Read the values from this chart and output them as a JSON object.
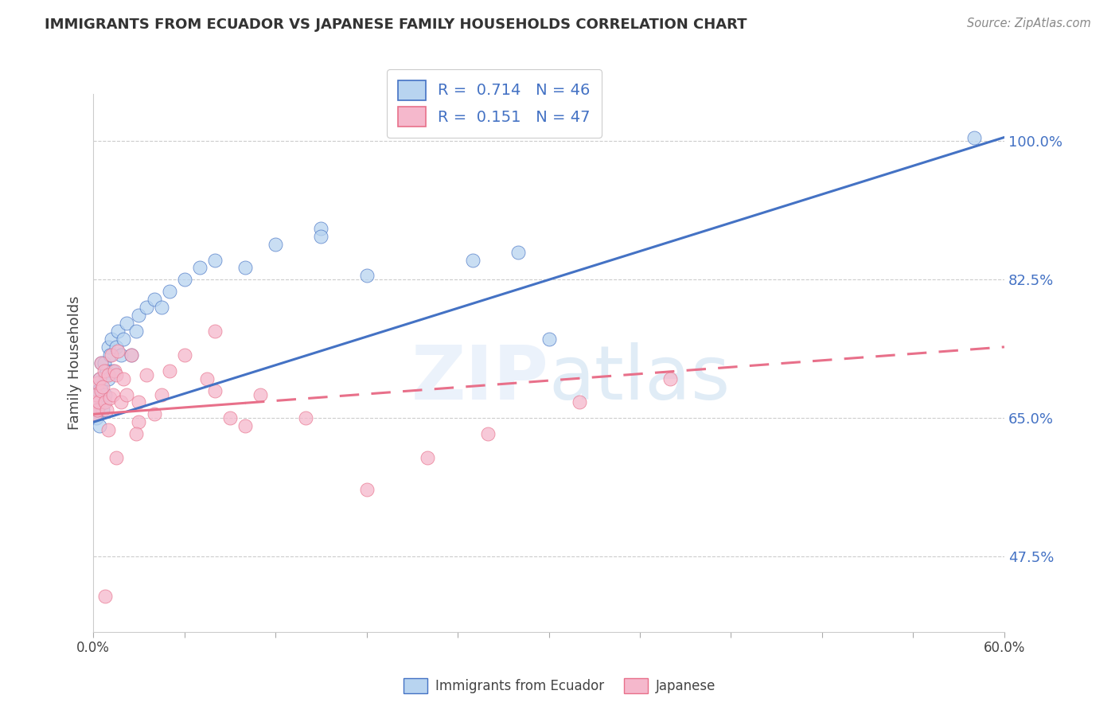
{
  "title": "IMMIGRANTS FROM ECUADOR VS JAPANESE FAMILY HOUSEHOLDS CORRELATION CHART",
  "source": "Source: ZipAtlas.com",
  "ylabel": "Family Households",
  "r_ecuador": 0.714,
  "n_ecuador": 46,
  "r_japanese": 0.151,
  "n_japanese": 47,
  "ecuador_color": "#b8d4f0",
  "japanese_color": "#f5b8cc",
  "ecuador_line_color": "#4472c4",
  "japanese_line_color": "#e8708a",
  "y_ticks": [
    47.5,
    65.0,
    82.5,
    100.0
  ],
  "x_range": [
    0.0,
    60.0
  ],
  "y_range": [
    38.0,
    106.0
  ],
  "eq_trend_x0": 0.0,
  "eq_trend_y0": 64.5,
  "eq_trend_x1": 60.0,
  "eq_trend_y1": 100.5,
  "jp_trend_x0": 0.0,
  "jp_trend_y0": 65.5,
  "jp_trend_x1": 60.0,
  "jp_trend_y1": 74.0,
  "jp_solid_end_x": 10.0,
  "ecuador_points_x": [
    0.1,
    0.15,
    0.2,
    0.2,
    0.3,
    0.3,
    0.4,
    0.4,
    0.5,
    0.5,
    0.6,
    0.6,
    0.7,
    0.7,
    0.8,
    0.8,
    0.9,
    1.0,
    1.0,
    1.1,
    1.2,
    1.3,
    1.5,
    1.6,
    1.8,
    2.0,
    2.2,
    2.5,
    2.8,
    3.0,
    3.5,
    4.0,
    4.5,
    5.0,
    6.0,
    7.0,
    8.0,
    10.0,
    12.0,
    15.0,
    18.0,
    25.0,
    30.0,
    15.0,
    28.0,
    58.0
  ],
  "ecuador_points_y": [
    65.5,
    66.0,
    67.0,
    65.0,
    68.5,
    66.0,
    70.0,
    64.0,
    69.0,
    72.0,
    68.0,
    66.0,
    72.0,
    67.0,
    70.5,
    68.0,
    71.0,
    74.0,
    70.0,
    73.0,
    75.0,
    71.0,
    74.0,
    76.0,
    73.0,
    75.0,
    77.0,
    73.0,
    76.0,
    78.0,
    79.0,
    80.0,
    79.0,
    81.0,
    82.5,
    84.0,
    85.0,
    84.0,
    87.0,
    89.0,
    83.0,
    85.0,
    75.0,
    88.0,
    86.0,
    100.5
  ],
  "japanese_points_x": [
    0.1,
    0.15,
    0.2,
    0.25,
    0.3,
    0.35,
    0.4,
    0.5,
    0.5,
    0.6,
    0.7,
    0.8,
    0.9,
    1.0,
    1.0,
    1.1,
    1.2,
    1.3,
    1.4,
    1.5,
    1.6,
    1.8,
    2.0,
    2.2,
    2.5,
    3.0,
    3.5,
    4.0,
    4.5,
    5.0,
    6.0,
    7.5,
    8.0,
    9.0,
    10.0,
    11.0,
    14.0,
    18.0,
    22.0,
    26.0,
    8.0,
    32.0,
    38.0,
    3.0,
    2.8,
    1.5,
    0.8
  ],
  "japanese_points_y": [
    67.0,
    65.5,
    68.0,
    66.0,
    69.5,
    67.0,
    70.0,
    68.5,
    72.0,
    69.0,
    71.0,
    67.0,
    66.0,
    70.5,
    63.5,
    67.5,
    73.0,
    68.0,
    71.0,
    70.5,
    73.5,
    67.0,
    70.0,
    68.0,
    73.0,
    67.0,
    70.5,
    65.5,
    68.0,
    71.0,
    73.0,
    70.0,
    68.5,
    65.0,
    64.0,
    68.0,
    65.0,
    56.0,
    60.0,
    63.0,
    76.0,
    67.0,
    70.0,
    64.5,
    63.0,
    60.0,
    42.5
  ]
}
